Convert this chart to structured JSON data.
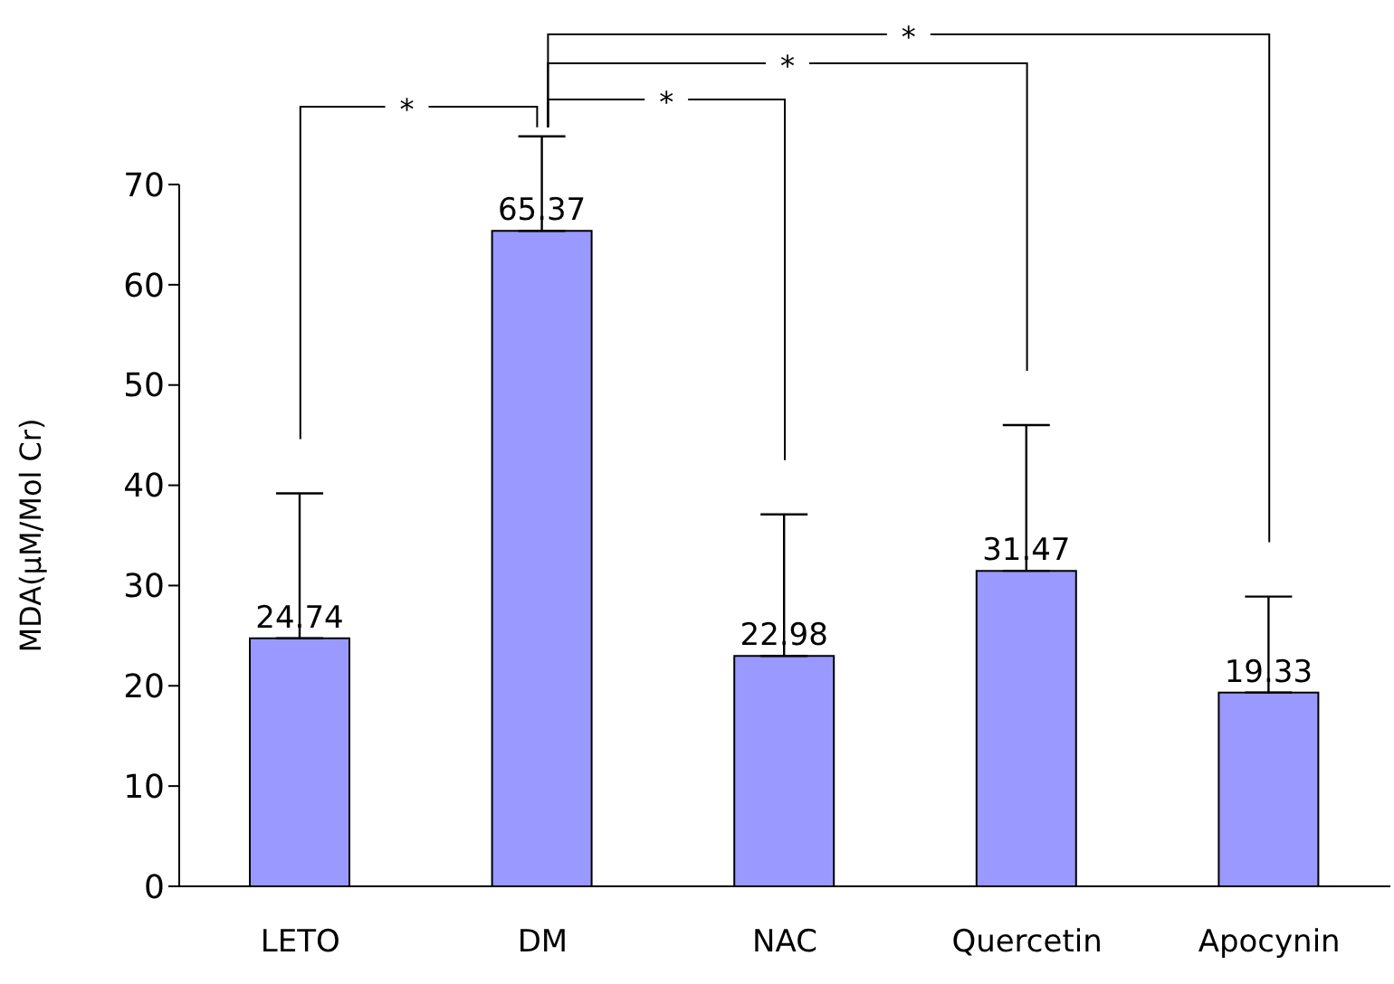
{
  "chart_data": {
    "type": "bar",
    "ylabel": "MDA(μM/Mol Cr)",
    "categories": [
      "LETO",
      "DM",
      "NAC",
      "Quercetin",
      "Apocynin"
    ],
    "values": [
      24.74,
      65.37,
      22.98,
      31.47,
      19.33
    ],
    "errors": [
      [
        24.74,
        39.2
      ],
      [
        65.37,
        74.8
      ],
      [
        22.98,
        37.1
      ],
      [
        31.47,
        46.0
      ],
      [
        19.33,
        28.9
      ]
    ],
    "color": "#9999ff",
    "data_labels": true,
    "ylim": [
      0,
      70
    ],
    "yticks": [
      0,
      10,
      20,
      30,
      40,
      50,
      60,
      70
    ],
    "grid": false,
    "legend": false,
    "annotations": [
      "*",
      "*",
      "*",
      "*"
    ]
  }
}
